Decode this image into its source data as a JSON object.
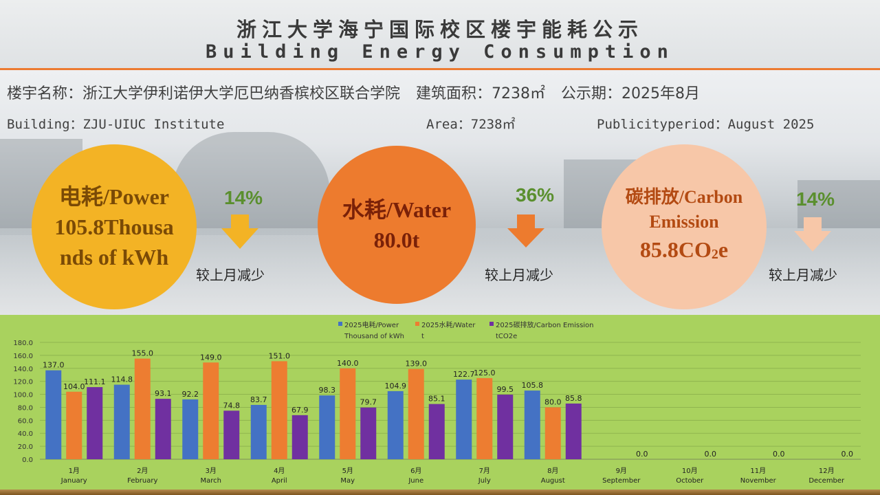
{
  "header": {
    "title_cn": "浙江大学海宁国际校区楼宇能耗公示",
    "title_en": "Building Energy Consumption"
  },
  "info": {
    "name_cn": "楼宇名称：浙江大学伊利诺伊大学厄巴纳香槟校区联合学院",
    "area_cn": "建筑面积：7238㎡",
    "period_cn": "公示期：2025年8月",
    "building_en": "Building：ZJU-UIUC Institute",
    "area_en": "Area：7238㎡",
    "period_en": "Publicityperiod：August 2025"
  },
  "metrics": {
    "power": {
      "line1": "电耗/Power",
      "line2": "105.8Thousa",
      "line3": "nds of kWh",
      "change": "14%",
      "note": "较上月减少",
      "color": "#f3b325",
      "pct_color": "#5a8f2e"
    },
    "water": {
      "line1": "水耗/Water",
      "line2": "80.0t",
      "change": "36%",
      "note": "较上月减少",
      "color": "#ed7b2e",
      "pct_color": "#5a8f2e"
    },
    "carbon": {
      "line1": "碳排放/Carbon",
      "line2": "Emission",
      "line3_value": "85.8CO",
      "line3_sub": "2",
      "line3_tail": "e",
      "change": "14%",
      "note": "较上月减少",
      "color": "#f7c7a8",
      "pct_color": "#5a8f2e"
    }
  },
  "chart_data": {
    "type": "bar",
    "categories": [
      "1月\nJanuary",
      "2月\nFebruary",
      "3月\nMarch",
      "4月\nApril",
      "5月\nMay",
      "6月\nJune",
      "7月\nJuly",
      "8月\nAugust",
      "9月\nSeptember",
      "10月\nOctober",
      "11月\nNovember",
      "12月\nDecember"
    ],
    "series": [
      {
        "name": "2025电耗/Power Thousand of kWh",
        "legend_line1": "2025电耗/Power",
        "legend_line2": "Thousand of kWh",
        "color": "#4472c4",
        "values": [
          137.0,
          114.8,
          92.2,
          83.7,
          98.3,
          104.9,
          122.7,
          105.8,
          null,
          null,
          null,
          null
        ]
      },
      {
        "name": "2025水耗/Water t",
        "legend_line1": "2025水耗/Water",
        "legend_line2": "t",
        "color": "#ed7d31",
        "values": [
          104.0,
          155.0,
          149.0,
          151.0,
          140.0,
          139.0,
          125.0,
          80.0,
          null,
          null,
          null,
          null
        ]
      },
      {
        "name": "2025碳排放/Carbon Emission tCO2e",
        "legend_line1": "2025碳排放/Carbon Emission",
        "legend_line2": "tCO2e",
        "color": "#7030a0",
        "values": [
          111.1,
          93.1,
          74.8,
          67.9,
          79.7,
          85.1,
          99.5,
          85.8,
          0.0,
          0.0,
          0.0,
          0.0
        ]
      }
    ],
    "ylim": [
      0,
      180
    ],
    "yticks": [
      0,
      20,
      40,
      60,
      80,
      100,
      120,
      140,
      160,
      180
    ],
    "grid": true,
    "legend_position": "top"
  }
}
